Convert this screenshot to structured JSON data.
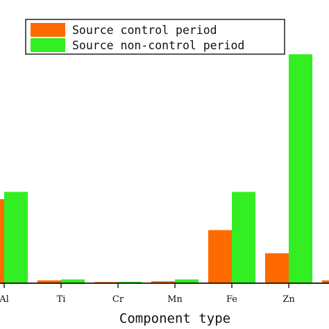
{
  "chart_data": {
    "type": "bar",
    "categories": [
      "Al",
      "Ti",
      "Cr",
      "Mn",
      "Fe",
      "Zn",
      ""
    ],
    "series": [
      {
        "name": "Source control period",
        "color": "#ff6a00",
        "values": [
          0.356,
          0.012,
          0.005,
          0.008,
          0.225,
          0.127,
          0.012
        ]
      },
      {
        "name": "Source non-control period",
        "color": "#33ee22",
        "values": [
          0.387,
          0.016,
          0.006,
          0.016,
          0.387,
          0.97,
          0
        ]
      }
    ],
    "xlabel": "Component type",
    "ylabel": "",
    "ylim": [
      0,
      1.2
    ],
    "legend_position": "top-right",
    "grid": false
  }
}
